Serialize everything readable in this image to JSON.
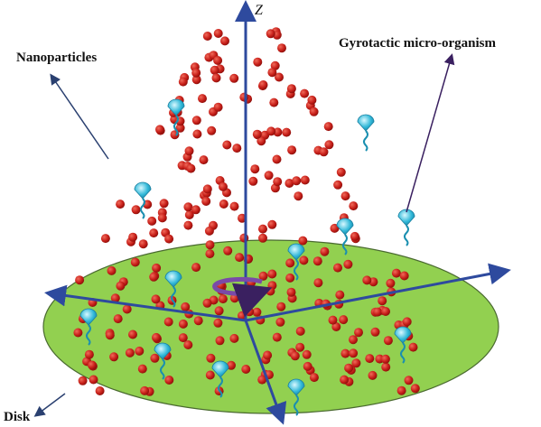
{
  "axis_label": "Z",
  "labels": {
    "nanoparticles": "Nanoparticles",
    "organism": "Gyrotactic micro-organism",
    "disk": "Disk"
  }
}
